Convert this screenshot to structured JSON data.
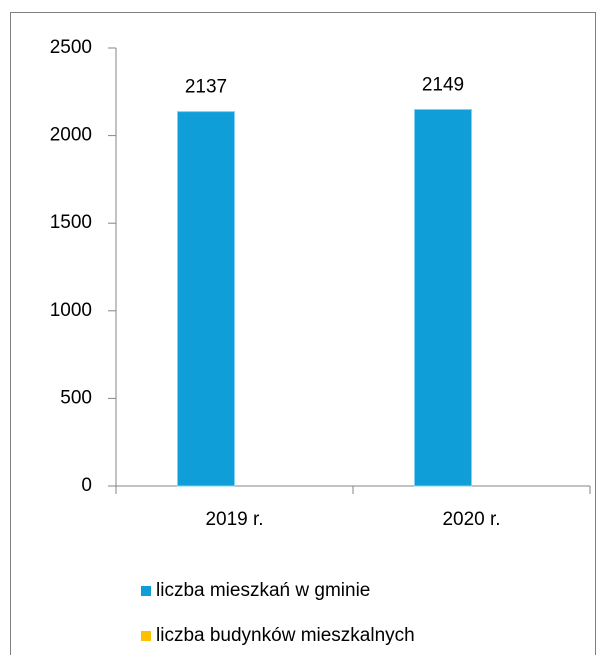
{
  "chart_data": {
    "type": "bar",
    "categories": [
      "2019 r.",
      "2020 r."
    ],
    "series": [
      {
        "name": "liczba mieszkań w gminie",
        "color": "#0f9ed8",
        "values": [
          2137,
          2149
        ]
      },
      {
        "name": "liczba budynków mieszkalnych",
        "color": "#ffc000",
        "values": [
          null,
          null
        ]
      }
    ],
    "ylim": [
      0,
      2500
    ],
    "yticks": [
      0,
      500,
      1000,
      1500,
      2000,
      2500
    ],
    "grid": false,
    "legend": "bottom"
  }
}
